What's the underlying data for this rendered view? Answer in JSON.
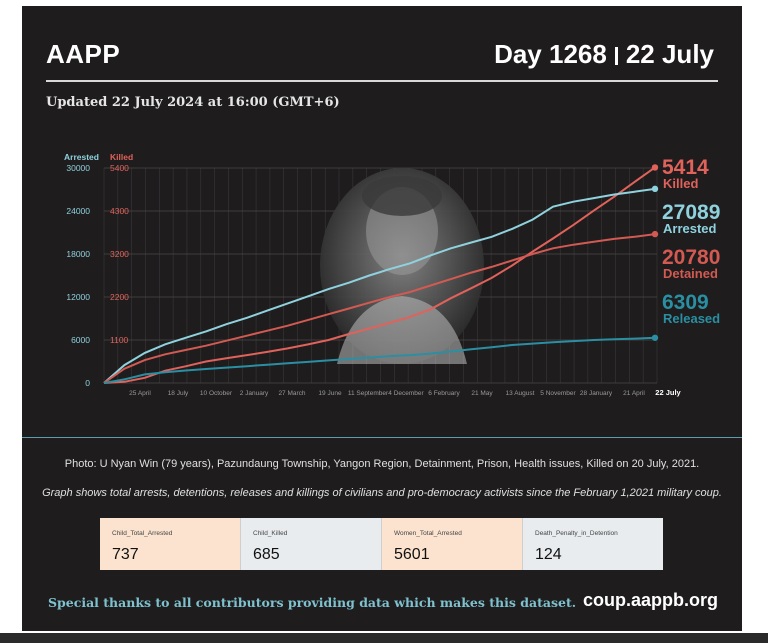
{
  "header": {
    "brand": "AAPP",
    "day": "Day 1268",
    "date": "22 July",
    "updated": "Updated 22 July 2024 at 16:00 (GMT+6)"
  },
  "chart_data": {
    "type": "line",
    "left_axis": {
      "label": "Arrested",
      "ticks": [
        "0",
        "6000",
        "12000",
        "18000",
        "24000",
        "30000"
      ],
      "range": [
        0,
        30000
      ]
    },
    "right_axis": {
      "label": "Killed",
      "ticks": [
        "1100",
        "2200",
        "3200",
        "4300",
        "5400"
      ]
    },
    "x_ticks": [
      "25 April",
      "18 July",
      "10 October",
      "2 January",
      "27 March",
      "19 June",
      "11 September",
      "4 December",
      "6 February",
      "21 May",
      "13 August",
      "5 November",
      "28 January",
      "21 April"
    ],
    "x_end_label": "22 July",
    "series": [
      {
        "name": "Killed",
        "final_value": "5414",
        "final_label": "Killed",
        "color": "#e0625b",
        "values": [
          0,
          30,
          130,
          310,
          420,
          540,
          620,
          700,
          780,
          870,
          970,
          1080,
          1230,
          1370,
          1510,
          1660,
          1850,
          2130,
          2380,
          2640,
          2950,
          3300,
          3630,
          3970,
          4330,
          4680,
          5050,
          5414
        ]
      },
      {
        "name": "Arrested",
        "final_value": "27089",
        "final_label": "Arrested",
        "color": "#8fd2de",
        "values": [
          0,
          2500,
          4200,
          5400,
          6300,
          7200,
          8200,
          9100,
          10100,
          11100,
          12100,
          13100,
          14000,
          15000,
          15900,
          16700,
          17800,
          18800,
          19600,
          20400,
          21500,
          22800,
          24600,
          25300,
          25800,
          26300,
          26700,
          27089
        ]
      },
      {
        "name": "Detained",
        "final_value": "20780",
        "final_label": "Detained",
        "color": "#d25a52",
        "values": [
          0,
          2000,
          3200,
          4000,
          4600,
          5200,
          5900,
          6600,
          7300,
          8000,
          8800,
          9600,
          10400,
          11200,
          12000,
          12700,
          13600,
          14500,
          15400,
          16200,
          17100,
          18000,
          18800,
          19300,
          19700,
          20100,
          20400,
          20780
        ]
      },
      {
        "name": "Released",
        "final_value": "6309",
        "final_label": "Released",
        "color": "#2a8fa2",
        "values": [
          0,
          500,
          1200,
          1500,
          1750,
          1950,
          2150,
          2350,
          2550,
          2750,
          2950,
          3150,
          3350,
          3550,
          3750,
          3900,
          4100,
          4400,
          4700,
          5000,
          5300,
          5500,
          5700,
          5850,
          6000,
          6100,
          6200,
          6309
        ]
      }
    ]
  },
  "captions": {
    "photo": "Photo: U Nyan Win (79 years), Pazundaung Township, Yangon Region, Detainment, Prison, Health issues, Killed on 20 July, 2021.",
    "graph": "Graph shows total arrests, detentions, releases and killings of civilians and pro-democracy activists since the February 1,2021 military coup."
  },
  "stats": [
    {
      "label": "Child_Total_Arrested",
      "value": "737",
      "bg": "#fbe3cf"
    },
    {
      "label": "Child_Killed",
      "value": "685",
      "bg": "#e9ecef"
    },
    {
      "label": "Women_Total_Arrested",
      "value": "5601",
      "bg": "#fbe3cf"
    },
    {
      "label": "Death_Penalty_in_Detention",
      "value": "124",
      "bg": "#e9ecef"
    }
  ],
  "footer": {
    "thanks": "Special thanks to all contributors providing data which makes this dataset.",
    "site": "coup.aappb.org"
  }
}
